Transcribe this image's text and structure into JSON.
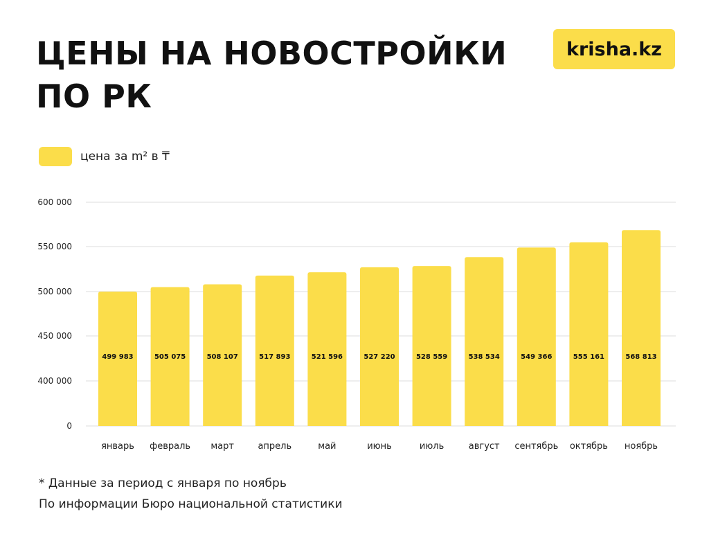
{
  "title": {
    "line1": "ЦЕНЫ НА НОВОСТРОЙКИ",
    "line2": "ПО РК"
  },
  "logo": {
    "text": "krisha.kz",
    "color": "#FBDD4A"
  },
  "legend": {
    "label": "цена за m² в ₸"
  },
  "footnotes": {
    "period": "* Данные за период с января по ноябрь",
    "source": "По информации Бюро национальной статистики"
  },
  "chart_data": {
    "type": "bar",
    "categories": [
      "январь",
      "февраль",
      "март",
      "апрель",
      "май",
      "июнь",
      "июль",
      "август",
      "сентябрь",
      "октябрь",
      "ноябрь"
    ],
    "series": [
      {
        "name": "цена за m² в ₸",
        "values": [
          499983,
          505075,
          508107,
          517893,
          521596,
          527220,
          528559,
          538534,
          549366,
          555161,
          568813
        ],
        "labels": [
          "499 983",
          "505 075",
          "508 107",
          "517 893",
          "521 596",
          "527 220",
          "528 559",
          "538 534",
          "549 366",
          "555 161",
          "568 813"
        ],
        "color": "#FBDD4A"
      }
    ],
    "y_ticks": [
      {
        "value": 0,
        "label": "0"
      },
      {
        "value": 400000,
        "label": "400 000"
      },
      {
        "value": 450000,
        "label": "450 000"
      },
      {
        "value": 500000,
        "label": "500 000"
      },
      {
        "value": 550000,
        "label": "550 000"
      },
      {
        "value": 600000,
        "label": "600 000"
      }
    ],
    "ylim": [
      0,
      600000
    ],
    "axis_break": true,
    "grid": true,
    "gridColor": "#DDDDDD",
    "legend_position": "top-left"
  }
}
